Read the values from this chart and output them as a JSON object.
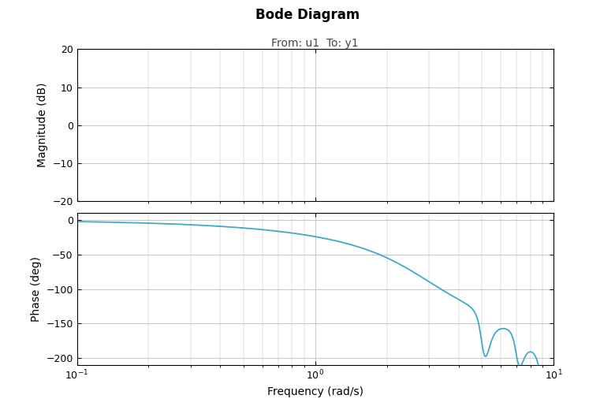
{
  "title": "Bode Diagram",
  "subtitle": "From: u1  To: y1",
  "xlabel": "Frequency (rad/s)",
  "ylabel_mag": "Magnitude (dB)",
  "ylabel_phase": "Phase (deg)",
  "line_color": "#3fa9c8",
  "line_width": 1.3,
  "freq_min": 0.1,
  "freq_max": 10,
  "mag_ylim": [
    -20,
    20
  ],
  "phase_ylim": [
    -210,
    10
  ],
  "mag_yticks": [
    -20,
    -10,
    0,
    10,
    20
  ],
  "phase_yticks": [
    -200,
    -150,
    -100,
    -50,
    0
  ],
  "background_color": "#ffffff",
  "title_fontsize": 12,
  "subtitle_fontsize": 10,
  "label_fontsize": 10,
  "tick_fontsize": 9,
  "grid_color": "#b0b0b0",
  "grid_linewidth": 0.5
}
